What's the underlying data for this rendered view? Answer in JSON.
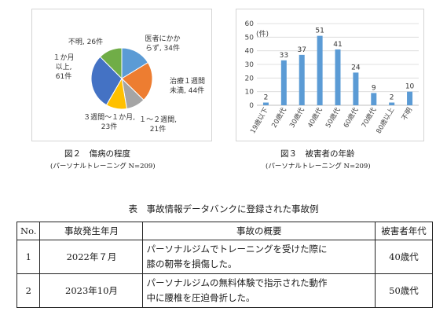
{
  "fig2": {
    "caption": "図２　傷病の程度",
    "subcaption": "(パーソナルトレーニング N=209)"
  },
  "fig3": {
    "caption": "図３　被害者の年齢",
    "subcaption": "(パーソナルトレーニング N=209)"
  },
  "chart_data": [
    {
      "type": "pie",
      "slices": [
        {
          "label_lines": [
            "医者にかか",
            "らず, 34件"
          ],
          "value": 34,
          "color": "#5b9bd5"
        },
        {
          "label_lines": [
            "治療１週間",
            "未満, 44件"
          ],
          "value": 44,
          "color": "#ed7d31"
        },
        {
          "label_lines": [
            "１～２週間,",
            "21件"
          ],
          "value": 21,
          "color": "#a5a5a5"
        },
        {
          "label_lines": [
            "３週間～１か月,",
            "23件"
          ],
          "value": 23,
          "color": "#ffc000"
        },
        {
          "label_lines": [
            "１か月",
            "以上,",
            "61件"
          ],
          "value": 61,
          "color": "#4472c4"
        },
        {
          "label_lines": [
            "不明, 26件"
          ],
          "value": 26,
          "color": "#70ad47"
        }
      ]
    },
    {
      "type": "bar",
      "ylabel": "(件)",
      "ylim": [
        0,
        60
      ],
      "yticks": [
        0,
        10,
        20,
        30,
        40,
        50,
        60
      ],
      "categories": [
        "19歳以下",
        "20歳代",
        "30歳代",
        "40歳代",
        "50歳代",
        "60歳代",
        "70歳代",
        "80歳以上",
        "不明"
      ],
      "values": [
        2,
        33,
        37,
        51,
        41,
        24,
        9,
        2,
        10
      ],
      "color": "#5b9bd5"
    }
  ],
  "table": {
    "title": "表　事故情報データバンクに登録された事故例",
    "headers": {
      "no": "No.",
      "date": "事故発生年月",
      "desc": "事故の概要",
      "age": "被害者年代"
    },
    "rows": [
      {
        "no": "1",
        "date": "2022年７月",
        "desc_lines": [
          "パーソナルジムでトレーニングを受けた際に",
          "膝の靭帯を損傷した。"
        ],
        "age": "40歳代"
      },
      {
        "no": "2",
        "date": "2023年10月",
        "desc_lines": [
          "パーソナルジムの無料体験で指示された動作",
          "中に腰椎を圧迫骨折した。"
        ],
        "age": "50歳代"
      }
    ]
  }
}
